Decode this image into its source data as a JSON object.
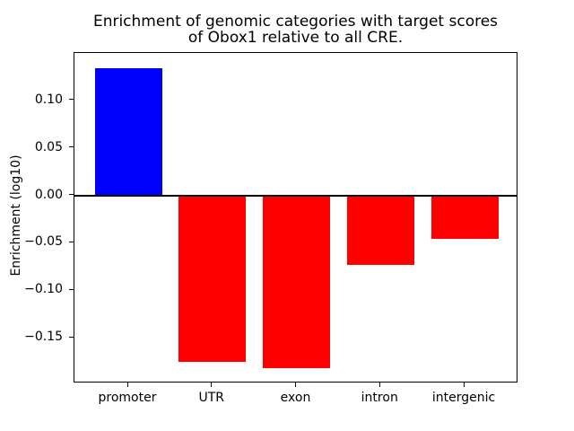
{
  "chart_data": {
    "type": "bar",
    "title": "Enrichment of genomic categories with target scores\nof Obox1 relative to all CRE.",
    "xlabel": "",
    "ylabel": "Enrichment (log10)",
    "categories": [
      "promoter",
      "UTR",
      "exon",
      "intron",
      "intergenic"
    ],
    "values": [
      0.134,
      -0.175,
      -0.182,
      -0.073,
      -0.046
    ],
    "bar_colors": [
      "#0000ff",
      "#ff0000",
      "#ff0000",
      "#ff0000",
      "#ff0000"
    ],
    "positive_color": "#0000ff",
    "negative_color": "#ff0000",
    "yticks": [
      {
        "label": "0.10",
        "value": 0.1
      },
      {
        "label": "0.05",
        "value": 0.05
      },
      {
        "label": "0.00",
        "value": 0.0
      },
      {
        "label": "−0.05",
        "value": -0.05
      },
      {
        "label": "−0.10",
        "value": -0.1
      },
      {
        "label": "−0.15",
        "value": -0.15
      }
    ],
    "ylim": [
      -0.198,
      0.15
    ],
    "xlim": [
      -0.64,
      4.64
    ],
    "bar_width": 0.8,
    "grid": false,
    "zero_line": true,
    "legend": null,
    "background_color": "#ffffff",
    "axis_color": "#000000"
  }
}
